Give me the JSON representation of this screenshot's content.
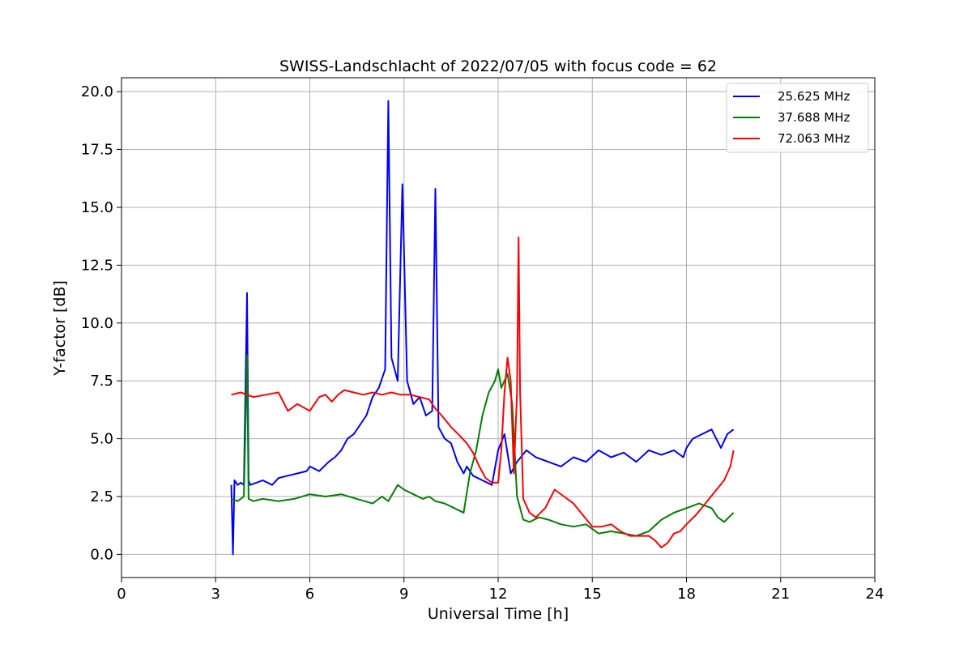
{
  "chart_data": {
    "type": "line",
    "title": "SWISS-Landschlacht of 2022/07/05 with focus code = 62",
    "xlabel": "Universal Time [h]",
    "ylabel": "Y-factor [dB]",
    "xlim": [
      0,
      24
    ],
    "ylim": [
      -1.0,
      20.6
    ],
    "xticks": [
      0,
      3,
      6,
      9,
      12,
      15,
      18,
      21,
      24
    ],
    "xtick_labels": [
      "0",
      "3",
      "6",
      "9",
      "12",
      "15",
      "18",
      "21",
      "24"
    ],
    "yticks": [
      0,
      2.5,
      5,
      7.5,
      10,
      12.5,
      15,
      17.5,
      20
    ],
    "ytick_labels": [
      "0.0",
      "2.5",
      "5.0",
      "7.5",
      "10.0",
      "12.5",
      "15.0",
      "17.5",
      "20.0"
    ],
    "grid": true,
    "legend_position": "top-right",
    "series": [
      {
        "name": "25.625 MHz",
        "color": "#0000ff",
        "x": [
          3.5,
          3.55,
          3.6,
          3.7,
          3.8,
          3.9,
          4.0,
          4.05,
          4.1,
          4.3,
          4.5,
          4.8,
          5.0,
          5.3,
          5.6,
          5.9,
          6.0,
          6.3,
          6.6,
          6.8,
          7.0,
          7.2,
          7.4,
          7.6,
          7.8,
          8.0,
          8.2,
          8.4,
          8.5,
          8.6,
          8.8,
          8.95,
          9.1,
          9.3,
          9.5,
          9.7,
          9.9,
          10.0,
          10.1,
          10.3,
          10.5,
          10.7,
          10.9,
          11.0,
          11.2,
          11.5,
          11.8,
          12.0,
          12.2,
          12.4,
          12.6,
          12.9,
          13.2,
          13.6,
          14.0,
          14.4,
          14.8,
          15.2,
          15.6,
          16.0,
          16.4,
          16.8,
          17.2,
          17.6,
          17.9,
          18.0,
          18.2,
          18.5,
          18.8,
          19.1,
          19.3,
          19.5
        ],
        "y": [
          3.0,
          0.0,
          3.2,
          3.0,
          3.1,
          3.0,
          11.3,
          3.2,
          3.0,
          3.1,
          3.2,
          3.0,
          3.3,
          3.4,
          3.5,
          3.6,
          3.8,
          3.6,
          4.0,
          4.2,
          4.5,
          5.0,
          5.2,
          5.6,
          6.0,
          6.8,
          7.2,
          8.0,
          19.6,
          8.5,
          7.5,
          16.0,
          7.5,
          6.5,
          6.8,
          6.0,
          6.2,
          15.8,
          5.5,
          5.0,
          4.8,
          4.0,
          3.5,
          3.8,
          3.4,
          3.2,
          3.0,
          4.5,
          5.2,
          3.5,
          4.0,
          4.5,
          4.2,
          4.0,
          3.8,
          4.2,
          4.0,
          4.5,
          4.2,
          4.4,
          4.0,
          4.5,
          4.3,
          4.5,
          4.2,
          4.6,
          5.0,
          5.2,
          5.4,
          4.6,
          5.2,
          5.4
        ]
      },
      {
        "name": "37.688 MHz",
        "color": "#008000",
        "x": [
          3.5,
          3.7,
          3.9,
          4.0,
          4.05,
          4.2,
          4.5,
          5.0,
          5.5,
          6.0,
          6.5,
          7.0,
          7.5,
          8.0,
          8.3,
          8.5,
          8.8,
          9.0,
          9.3,
          9.6,
          9.8,
          10.0,
          10.3,
          10.6,
          10.9,
          11.1,
          11.3,
          11.5,
          11.7,
          11.9,
          12.0,
          12.1,
          12.3,
          12.45,
          12.6,
          12.8,
          13.0,
          13.3,
          13.6,
          14.0,
          14.4,
          14.8,
          15.2,
          15.6,
          16.0,
          16.4,
          16.8,
          17.2,
          17.6,
          18.0,
          18.4,
          18.8,
          19.0,
          19.2,
          19.5
        ],
        "y": [
          2.4,
          2.3,
          2.5,
          8.6,
          2.4,
          2.3,
          2.4,
          2.3,
          2.4,
          2.6,
          2.5,
          2.6,
          2.4,
          2.2,
          2.5,
          2.3,
          3.0,
          2.8,
          2.6,
          2.4,
          2.5,
          2.3,
          2.2,
          2.0,
          1.8,
          3.5,
          4.5,
          6.0,
          7.0,
          7.5,
          8.0,
          7.2,
          7.8,
          6.5,
          2.5,
          1.5,
          1.4,
          1.6,
          1.5,
          1.3,
          1.2,
          1.3,
          0.9,
          1.0,
          0.9,
          0.8,
          1.0,
          1.5,
          1.8,
          2.0,
          2.2,
          2.0,
          1.6,
          1.4,
          1.8
        ]
      },
      {
        "name": "72.063 MHz",
        "color": "#ff0000",
        "x": [
          3.5,
          3.8,
          4.2,
          4.6,
          5.0,
          5.3,
          5.6,
          6.0,
          6.3,
          6.5,
          6.7,
          6.9,
          7.1,
          7.4,
          7.7,
          8.0,
          8.3,
          8.6,
          8.9,
          9.2,
          9.5,
          9.8,
          10.0,
          10.2,
          10.5,
          10.8,
          11.0,
          11.2,
          11.4,
          11.6,
          11.8,
          12.0,
          12.1,
          12.2,
          12.3,
          12.4,
          12.5,
          12.6,
          12.65,
          12.7,
          12.8,
          13.0,
          13.2,
          13.5,
          13.8,
          14.1,
          14.4,
          14.7,
          15.0,
          15.3,
          15.6,
          15.9,
          16.2,
          16.5,
          16.8,
          17.0,
          17.2,
          17.4,
          17.6,
          17.8,
          18.0,
          18.3,
          18.6,
          18.9,
          19.2,
          19.4,
          19.5
        ],
        "y": [
          6.9,
          7.0,
          6.8,
          6.9,
          7.0,
          6.2,
          6.5,
          6.2,
          6.8,
          6.9,
          6.6,
          6.9,
          7.1,
          7.0,
          6.9,
          7.0,
          6.9,
          7.0,
          6.9,
          6.9,
          6.8,
          6.7,
          6.3,
          6.0,
          5.5,
          5.1,
          4.8,
          4.4,
          3.8,
          3.3,
          3.1,
          3.1,
          4.5,
          7.0,
          8.5,
          7.5,
          3.5,
          7.0,
          13.7,
          7.0,
          2.4,
          1.8,
          1.6,
          2.0,
          2.8,
          2.5,
          2.2,
          1.7,
          1.2,
          1.2,
          1.3,
          1.0,
          0.8,
          0.8,
          0.8,
          0.6,
          0.3,
          0.5,
          0.9,
          1.0,
          1.3,
          1.7,
          2.2,
          2.7,
          3.2,
          3.8,
          4.5
        ]
      }
    ]
  }
}
